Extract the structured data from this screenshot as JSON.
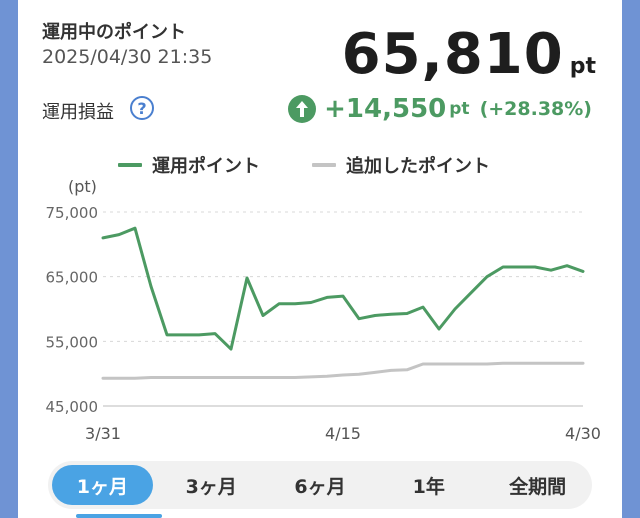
{
  "header": {
    "title": "運用中のポイント",
    "timestamp": "2025/04/30 21:35",
    "points_value": "65,810",
    "points_unit": "pt"
  },
  "profit": {
    "label": "運用損益",
    "help_glyph": "?",
    "gain_value": "+14,550",
    "gain_unit": "pt",
    "gain_percent": "(+28.38%)",
    "color": "#4c9a62"
  },
  "legend": {
    "series1": "運用ポイント",
    "series2": "追加したポイント"
  },
  "chart_data": {
    "type": "line",
    "ylabel": "(pt)",
    "ylim": [
      45000,
      78000
    ],
    "y_ticks": [
      "75,000",
      "65,000",
      "55,000",
      "45,000"
    ],
    "x_ticks": [
      "3/31",
      "4/15",
      "4/30"
    ],
    "grid": true,
    "series": [
      {
        "name": "運用ポイント",
        "color": "#4c9a62",
        "values": [
          71000,
          71500,
          72500,
          63500,
          56000,
          56000,
          56000,
          56200,
          53800,
          64800,
          59000,
          60800,
          60800,
          61000,
          61800,
          62000,
          58500,
          59000,
          59200,
          59300,
          60300,
          56900,
          60000,
          62500,
          65000,
          66500,
          66500,
          66500,
          66000,
          66700,
          65810
        ]
      },
      {
        "name": "追加したポイント",
        "color": "#c4c4c4",
        "values": [
          49300,
          49300,
          49300,
          49400,
          49400,
          49400,
          49400,
          49400,
          49400,
          49400,
          49400,
          49400,
          49400,
          49500,
          49600,
          49800,
          49900,
          50200,
          50500,
          50600,
          51500,
          51500,
          51500,
          51500,
          51500,
          51600,
          51600,
          51600,
          51600,
          51600,
          51600
        ]
      }
    ]
  },
  "tabs": [
    {
      "label": "1ヶ月",
      "active": true
    },
    {
      "label": "3ヶ月",
      "active": false
    },
    {
      "label": "6ヶ月",
      "active": false
    },
    {
      "label": "1年",
      "active": false
    },
    {
      "label": "全期間",
      "active": false
    }
  ]
}
